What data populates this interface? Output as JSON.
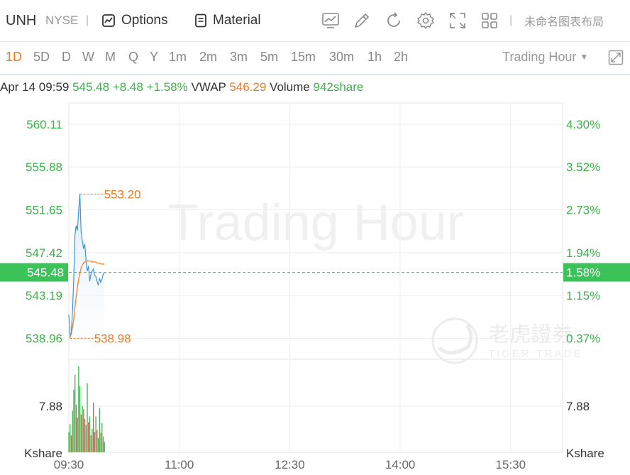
{
  "header": {
    "symbol": "UNH",
    "exchange": "NYSE",
    "separator": "|",
    "options_label": "Options",
    "material_label": "Material",
    "layout_name": "未命名图表布局"
  },
  "periods": [
    "1D",
    "5D",
    "D",
    "W",
    "M",
    "Q",
    "Y",
    "1m",
    "2m",
    "3m",
    "5m",
    "15m",
    "30m",
    "1h",
    "2h"
  ],
  "active_period": "1D",
  "session_dropdown": "Trading Hour",
  "info": {
    "datetime": "Apr 14 09:59",
    "price": "545.48",
    "change": "+8.48",
    "change_pct": "+1.58%",
    "vwap_label": "VWAP",
    "vwap_value": "546.29",
    "volume_label": "Volume",
    "volume_value": "942share"
  },
  "watermark": {
    "text": "Trading Hour",
    "brand_cn": "老虎證券",
    "brand_en": "TIGER TRADE"
  },
  "chart_data": {
    "type": "line",
    "price_axis": [
      "560.11",
      "555.88",
      "551.65",
      "547.42",
      "543.19",
      "538.96"
    ],
    "pct_axis": [
      "4.30%",
      "3.52%",
      "2.73%",
      "1.94%",
      "1.15%",
      "0.37%"
    ],
    "current_price": "545.48",
    "current_pct": "1.58%",
    "high_label": "553.20",
    "low_label": "538.98",
    "x_ticks": [
      "09:30",
      "11:00",
      "12:30",
      "14:00",
      "15:30"
    ],
    "volume_tick": "7.88",
    "volume_unit": "Kshare",
    "ylim": [
      536.9,
      562.2
    ],
    "series": [
      {
        "x": [
          0,
          1,
          2,
          3,
          4,
          5,
          6,
          7,
          8,
          9,
          10,
          11,
          12,
          13,
          14,
          15,
          16,
          17,
          18,
          19,
          20,
          21,
          22,
          23,
          24,
          25,
          26,
          27,
          28,
          29
        ],
        "values": [
          541.3,
          539.1,
          539.6,
          541.6,
          544.9,
          549.2,
          550.1,
          549.6,
          551.6,
          553.2,
          549.5,
          548.6,
          547.8,
          548.3,
          546.7,
          545.6,
          546.1,
          544.6,
          545.3,
          545.6,
          545.8,
          545.2,
          545.1,
          544.6,
          544.2,
          544.9,
          544.5,
          544.8,
          545.3,
          545.48
        ],
        "color": "#3d95dd"
      },
      {
        "name": "VWAP",
        "x": [
          0,
          1,
          2,
          3,
          4,
          5,
          6,
          7,
          8,
          9,
          10,
          11,
          12,
          13,
          14,
          15,
          16,
          17,
          18,
          19,
          20,
          21,
          22,
          23,
          24,
          25,
          26,
          27,
          28,
          29
        ],
        "values": [
          539.0,
          539.1,
          539.4,
          540.0,
          540.9,
          542.0,
          543.1,
          544.0,
          544.8,
          545.4,
          545.9,
          546.2,
          546.4,
          546.5,
          546.6,
          546.6,
          546.6,
          546.6,
          546.6,
          546.5,
          546.5,
          546.5,
          546.5,
          546.4,
          546.4,
          546.4,
          546.3,
          546.3,
          546.3,
          546.29
        ],
        "color": "#f0781e"
      }
    ],
    "volume_max": 13.5,
    "volume": [
      {
        "v": 3.1,
        "c": "g"
      },
      {
        "v": 4.3,
        "c": "g"
      },
      {
        "v": 2.6,
        "c": "r"
      },
      {
        "v": 6.4,
        "c": "g"
      },
      {
        "v": 9.6,
        "c": "g"
      },
      {
        "v": 11.9,
        "c": "g"
      },
      {
        "v": 7.3,
        "c": "r"
      },
      {
        "v": 5.3,
        "c": "r"
      },
      {
        "v": 13.2,
        "c": "g"
      },
      {
        "v": 10.1,
        "c": "g"
      },
      {
        "v": 5.8,
        "c": "r"
      },
      {
        "v": 7.1,
        "c": "g"
      },
      {
        "v": 6.6,
        "c": "r"
      },
      {
        "v": 5.1,
        "c": "r"
      },
      {
        "v": 4.2,
        "c": "g"
      },
      {
        "v": 10.6,
        "c": "g"
      },
      {
        "v": 4.6,
        "c": "r"
      },
      {
        "v": 5.5,
        "c": "g"
      },
      {
        "v": 2.6,
        "c": "r"
      },
      {
        "v": 3.6,
        "c": "g"
      },
      {
        "v": 7.6,
        "c": "r"
      },
      {
        "v": 3.1,
        "c": "r"
      },
      {
        "v": 5.5,
        "c": "g"
      },
      {
        "v": 3.4,
        "c": "r"
      },
      {
        "v": 2.2,
        "c": "g"
      },
      {
        "v": 6.8,
        "c": "g"
      },
      {
        "v": 3.0,
        "c": "r"
      },
      {
        "v": 4.5,
        "c": "g"
      },
      {
        "v": 2.4,
        "c": "g"
      },
      {
        "v": 1.6,
        "c": "g"
      }
    ],
    "colors": {
      "up": "#3bb44a",
      "down": "#e0554d",
      "grid": "#eeeeee",
      "axis_text": "#3bb44a",
      "current_bg": "#3bc35a"
    }
  }
}
